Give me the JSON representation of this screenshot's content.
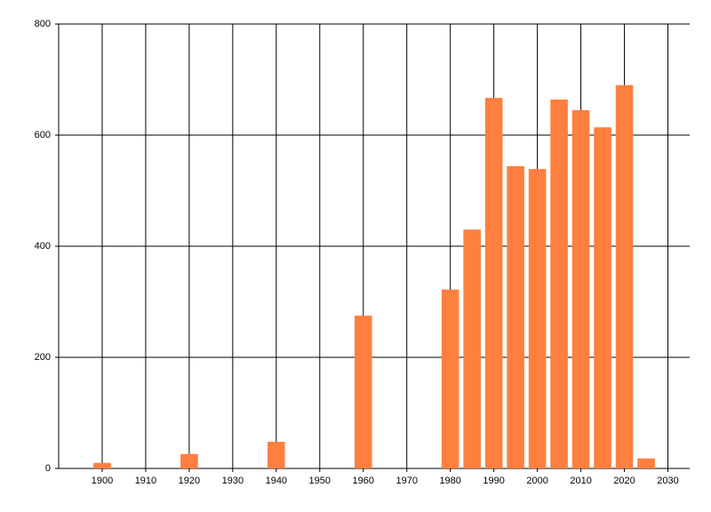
{
  "chart_data": {
    "type": "bar",
    "x": [
      1900,
      1920,
      1940,
      1960,
      1980,
      1985,
      1990,
      1995,
      2000,
      2005,
      2010,
      2015,
      2020,
      2025
    ],
    "values": [
      10,
      26,
      48,
      275,
      322,
      430,
      667,
      544,
      539,
      664,
      645,
      614,
      690,
      18
    ],
    "color": "#ff7f3f",
    "xlim": [
      1890,
      2035
    ],
    "xticks": [
      1900,
      1910,
      1920,
      1930,
      1940,
      1950,
      1960,
      1970,
      1980,
      1990,
      2000,
      2010,
      2020,
      2030
    ],
    "ylim": [
      0,
      800
    ],
    "yticks": [
      0,
      200,
      400,
      600,
      800
    ],
    "grid": true
  }
}
